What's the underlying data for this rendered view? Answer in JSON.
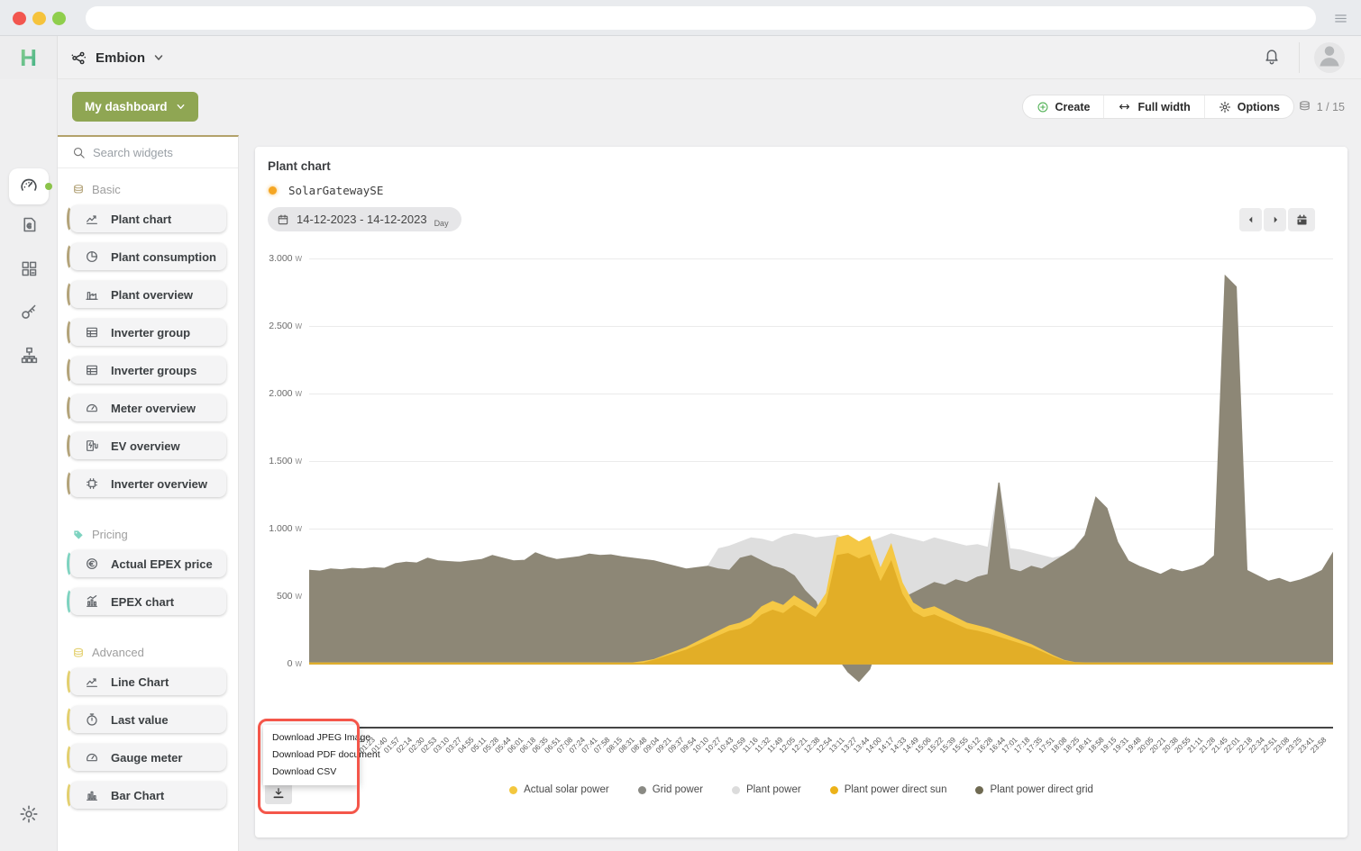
{
  "browser": {
    "traffic_lights": {
      "close": "#f2564f",
      "minimize": "#f5c33c",
      "zoom": "#8fce4c"
    },
    "url_value": ""
  },
  "header": {
    "app_initial": "H",
    "org_name": "Embion"
  },
  "toolbar": {
    "dashboard_button": "My dashboard",
    "create_label": "Create",
    "full_width_label": "Full width",
    "options_label": "Options",
    "page_indicator": "1 / 15"
  },
  "widgets_panel": {
    "search_placeholder": "Search widgets",
    "sections": [
      {
        "label": "Basic",
        "accent": "#b3a379",
        "section_icon": "layers",
        "items": [
          {
            "label": "Plant chart",
            "icon": "line-chart"
          },
          {
            "label": "Plant consumption",
            "icon": "pie"
          },
          {
            "label": "Plant overview",
            "icon": "factory"
          },
          {
            "label": "Inverter group",
            "icon": "table"
          },
          {
            "label": "Inverter groups",
            "icon": "table"
          },
          {
            "label": "Meter overview",
            "icon": "meter"
          },
          {
            "label": "EV overview",
            "icon": "ev"
          },
          {
            "label": "Inverter overview",
            "icon": "chip"
          }
        ]
      },
      {
        "label": "Pricing",
        "accent": "#7ed3c0",
        "section_icon": "tag",
        "items": [
          {
            "label": "Actual EPEX price",
            "icon": "coin"
          },
          {
            "label": "EPEX chart",
            "icon": "epex-chart"
          }
        ]
      },
      {
        "label": "Advanced",
        "accent": "#e3cf6d",
        "section_icon": "database",
        "items": [
          {
            "label": "Line Chart",
            "icon": "line-chart"
          },
          {
            "label": "Last value",
            "icon": "stopwatch"
          },
          {
            "label": "Gauge meter",
            "icon": "meter"
          },
          {
            "label": "Bar Chart",
            "icon": "bar-chart"
          }
        ]
      }
    ]
  },
  "chart_widget": {
    "title": "Plant chart",
    "device": {
      "name": "SolarGatewaySE",
      "dot_color": "#f5a623"
    },
    "date_range": "14-12-2023 - 14-12-2023",
    "range_mode": "Day",
    "download_menu": [
      "Download JPEG Image",
      "Download PDF document",
      "Download CSV"
    ]
  },
  "chart_data": {
    "type": "area",
    "title": "Plant chart",
    "unit": "W",
    "ylim": [
      0,
      3000
    ],
    "ytick_values": [
      3000,
      2500,
      2000,
      1500,
      1000,
      500,
      0
    ],
    "ytick_labels": [
      "3.000",
      "2.500",
      "2.000",
      "1.500",
      "1.000",
      "500",
      "0"
    ],
    "grid": true,
    "legend_position": "bottom",
    "x_tick_labels": [
      "00:00",
      "00:17",
      "00:33",
      "00:50",
      "01:06",
      "01:23",
      "01:40",
      "01:57",
      "02:14",
      "02:30",
      "02:53",
      "03:10",
      "03:27",
      "04:55",
      "05:11",
      "05:28",
      "05:44",
      "06:01",
      "06:18",
      "06:35",
      "06:51",
      "07:08",
      "07:24",
      "07:41",
      "07:58",
      "08:15",
      "08:31",
      "08:48",
      "09:04",
      "09:21",
      "09:37",
      "09:54",
      "10:10",
      "10:27",
      "10:43",
      "10:59",
      "11:16",
      "11:32",
      "11:49",
      "12:05",
      "12:21",
      "12:38",
      "12:54",
      "13:11",
      "13:27",
      "13:44",
      "14:00",
      "14:17",
      "14:33",
      "14:49",
      "15:06",
      "15:22",
      "15:39",
      "15:55",
      "16:12",
      "16:28",
      "16:44",
      "17:01",
      "17:18",
      "17:35",
      "17:51",
      "18:08",
      "18:25",
      "18:41",
      "18:58",
      "19:15",
      "19:31",
      "19:48",
      "20:05",
      "20:21",
      "20:38",
      "20:55",
      "21:11",
      "21:28",
      "21:45",
      "22:01",
      "22:18",
      "22:34",
      "22:51",
      "23:08",
      "23:25",
      "23:41",
      "23:58"
    ],
    "series": [
      {
        "name": "Plant power",
        "color": "#dedede",
        "values": [
          690,
          685,
          700,
          695,
          705,
          700,
          710,
          705,
          740,
          750,
          745,
          780,
          760,
          755,
          750,
          760,
          770,
          800,
          780,
          760,
          765,
          820,
          790,
          770,
          780,
          790,
          810,
          800,
          805,
          790,
          780,
          770,
          760,
          740,
          720,
          700,
          710,
          720,
          850,
          870,
          900,
          930,
          920,
          900,
          940,
          960,
          950,
          930,
          940,
          950,
          900,
          870,
          900,
          930,
          960,
          940,
          920,
          900,
          930,
          910,
          890,
          870,
          880,
          860,
          1340,
          850,
          840,
          820,
          800,
          780,
          800,
          860,
          950,
          1230,
          1150,
          900,
          760,
          720,
          690,
          660,
          700,
          680,
          700,
          730,
          800,
          2870,
          2790,
          690,
          650,
          610,
          630,
          600,
          620,
          650,
          690,
          820
        ]
      },
      {
        "name": "Plant power direct grid",
        "color": "#6f6853",
        "values": [
          640,
          637,
          650,
          646,
          655,
          650,
          660,
          655,
          688,
          697,
          692,
          725,
          706,
          702,
          697,
          706,
          716,
          744,
          725,
          706,
          711,
          762,
          734,
          716,
          725,
          734,
          753,
          744,
          748,
          734,
          725,
          716,
          706,
          688,
          669,
          651,
          660,
          669,
          651,
          641,
          725,
          744,
          706,
          669,
          651,
          604,
          502,
          427,
          232,
          46,
          0,
          0,
          0,
          186,
          353,
          446,
          483,
          520,
          558,
          539,
          576,
          558,
          595,
          613,
          1246,
          651,
          632,
          669,
          651,
          697,
          744,
          790,
          883,
          1143,
          1069,
          837,
          706,
          669,
          641,
          613,
          651,
          632,
          651,
          678,
          744,
          2669,
          2594,
          641,
          604,
          567,
          585,
          558,
          576,
          604,
          641,
          762
        ]
      },
      {
        "name": "Grid power",
        "color": "#8d8776",
        "values": [
          690,
          685,
          700,
          695,
          705,
          700,
          710,
          705,
          740,
          750,
          745,
          780,
          760,
          755,
          750,
          760,
          770,
          800,
          780,
          760,
          765,
          820,
          790,
          770,
          780,
          790,
          810,
          800,
          805,
          790,
          780,
          770,
          760,
          740,
          720,
          700,
          710,
          720,
          700,
          690,
          780,
          800,
          760,
          720,
          700,
          650,
          540,
          460,
          250,
          50,
          -60,
          -130,
          -40,
          200,
          380,
          480,
          520,
          560,
          600,
          580,
          620,
          600,
          640,
          660,
          1340,
          700,
          680,
          720,
          700,
          750,
          800,
          850,
          950,
          1230,
          1150,
          900,
          760,
          720,
          690,
          660,
          700,
          680,
          700,
          730,
          800,
          2870,
          2790,
          690,
          650,
          610,
          630,
          600,
          620,
          650,
          690,
          820
        ]
      },
      {
        "name": "Actual solar power",
        "color": "#f5c845",
        "values": [
          5,
          5,
          5,
          5,
          5,
          5,
          5,
          5,
          5,
          5,
          5,
          5,
          5,
          5,
          5,
          5,
          5,
          5,
          5,
          5,
          5,
          5,
          5,
          5,
          5,
          5,
          5,
          5,
          5,
          5,
          5,
          15,
          30,
          60,
          90,
          120,
          160,
          200,
          240,
          280,
          300,
          340,
          420,
          460,
          430,
          500,
          450,
          400,
          520,
          930,
          950,
          900,
          940,
          700,
          880,
          600,
          450,
          400,
          420,
          380,
          340,
          300,
          280,
          260,
          230,
          200,
          170,
          140,
          100,
          60,
          25,
          8,
          5,
          5,
          5,
          5,
          5,
          5,
          5,
          5,
          5,
          5,
          5,
          5,
          5,
          5,
          5,
          5,
          5,
          5,
          5,
          5,
          5,
          5,
          5,
          5
        ]
      },
      {
        "name": "Plant power direct sun",
        "color": "#e2ae27",
        "values": [
          3,
          3,
          3,
          3,
          3,
          3,
          3,
          3,
          3,
          3,
          3,
          3,
          3,
          3,
          3,
          3,
          3,
          3,
          3,
          3,
          3,
          3,
          3,
          3,
          3,
          3,
          3,
          3,
          3,
          3,
          3,
          3,
          25,
          50,
          75,
          100,
          135,
          170,
          205,
          240,
          255,
          290,
          360,
          395,
          370,
          430,
          385,
          340,
          445,
          800,
          815,
          775,
          805,
          600,
          755,
          515,
          385,
          340,
          360,
          325,
          290,
          255,
          240,
          220,
          195,
          170,
          145,
          118,
          85,
          50,
          20,
          6,
          3,
          3,
          3,
          3,
          3,
          3,
          3,
          3,
          3,
          3,
          3,
          3,
          3,
          3,
          3,
          3,
          3,
          3,
          3,
          3,
          3,
          3,
          3,
          3
        ]
      }
    ],
    "legend": [
      {
        "label": "Actual solar power",
        "color": "#f3c73e"
      },
      {
        "label": "Grid power",
        "color": "#8a8a84"
      },
      {
        "label": "Plant power",
        "color": "#dcdcdc"
      },
      {
        "label": "Plant power direct sun",
        "color": "#ecb219"
      },
      {
        "label": "Plant power direct grid",
        "color": "#6f6a52"
      }
    ]
  }
}
